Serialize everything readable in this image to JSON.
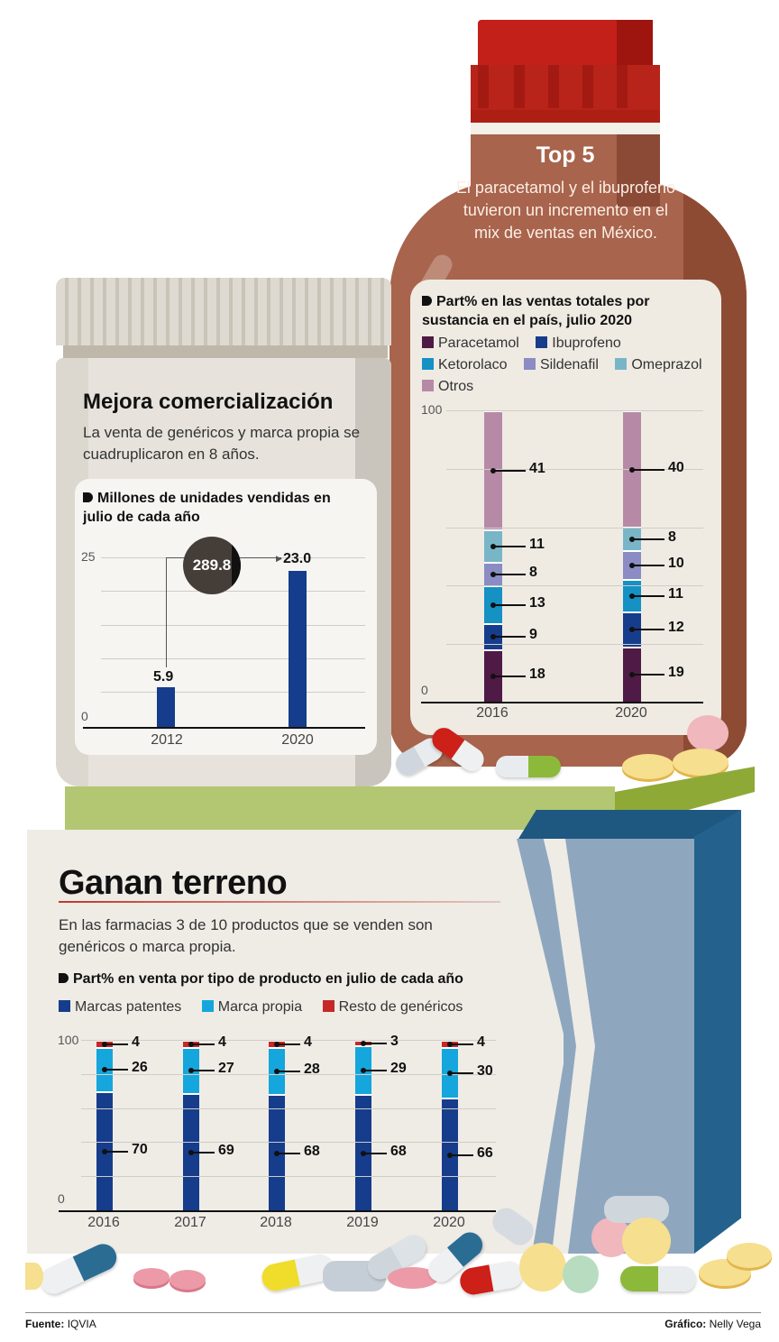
{
  "top5": {
    "title": "Top 5",
    "subtitle": "El paracetamol y el ibuprofeno tuvieron un incremento en el mix de ventas en México.",
    "legend_title": "Part% en las ventas totales por sustancia en el país, julio 2020",
    "legend": [
      {
        "label": "Paracetamol",
        "color": "#4f1a45"
      },
      {
        "label": "Ibuprofeno",
        "color": "#163c8c"
      },
      {
        "label": "Ketorolaco",
        "color": "#1591c4"
      },
      {
        "label": "Sildenafil",
        "color": "#8a8cc3"
      },
      {
        "label": "Omeprazol",
        "color": "#78b6c7"
      },
      {
        "label": "Otros",
        "color": "#b68aa6"
      }
    ],
    "axis": {
      "max": "100",
      "min": "0"
    },
    "categories": [
      "2016",
      "2020"
    ]
  },
  "mejora": {
    "title": "Mejora comercialización",
    "subtitle": "La venta de genéricos y marca propia se cuadruplicaron en 8 años.",
    "legend_title": "Millones de unidades vendidas en julio de cada año",
    "axis": {
      "max": "25",
      "min": "0"
    },
    "categories": [
      "2012",
      "2020"
    ],
    "values": [
      "5.9",
      "23.0"
    ],
    "growth_label": "289.8"
  },
  "ganan": {
    "title": "Ganan terreno",
    "subtitle": "En las farmacias 3 de 10 productos que se venden son genéricos o marca propia.",
    "legend_title": "Part% en venta por tipo de producto en julio de cada año",
    "legend": [
      {
        "label": "Marcas patentes",
        "color": "#163c8c"
      },
      {
        "label": "Marca propia",
        "color": "#14a6dc"
      },
      {
        "label": "Resto de genéricos",
        "color": "#c62828"
      }
    ],
    "axis": {
      "max": "100",
      "min": "0"
    },
    "categories": [
      "2016",
      "2017",
      "2018",
      "2019",
      "2020"
    ]
  },
  "footer": {
    "source_label": "Fuente:",
    "source": "IQVIA",
    "credit_label": "Gráfico:",
    "credit": "Nelly Vega"
  },
  "chart_data": [
    {
      "type": "bar",
      "title": "Millones de unidades vendidas en julio de cada año",
      "categories": [
        "2012",
        "2020"
      ],
      "values": [
        5.9,
        23.0
      ],
      "annotations": [
        "289.8 (% growth 2012→2020)"
      ],
      "xlabel": "",
      "ylabel": "Millones de unidades",
      "ylim": [
        0,
        25
      ],
      "grid": true
    },
    {
      "type": "bar",
      "stacked": true,
      "title": "Part% en las ventas totales por sustancia en el país, julio 2020",
      "categories": [
        "2016",
        "2020"
      ],
      "series": [
        {
          "name": "Paracetamol",
          "values": [
            18,
            19
          ]
        },
        {
          "name": "Ibuprofeno",
          "values": [
            9,
            12
          ]
        },
        {
          "name": "Ketorolaco",
          "values": [
            13,
            11
          ]
        },
        {
          "name": "Sildenafil",
          "values": [
            8,
            10
          ]
        },
        {
          "name": "Omeprazol",
          "values": [
            11,
            8
          ]
        },
        {
          "name": "Otros",
          "values": [
            41,
            40
          ]
        }
      ],
      "ylim": [
        0,
        100
      ],
      "grid": true,
      "legend_position": "top"
    },
    {
      "type": "bar",
      "stacked": true,
      "title": "Part% en venta por tipo de producto en julio de cada año",
      "categories": [
        "2016",
        "2017",
        "2018",
        "2019",
        "2020"
      ],
      "series": [
        {
          "name": "Marcas patentes",
          "values": [
            70,
            69,
            68,
            68,
            66
          ]
        },
        {
          "name": "Marca propia",
          "values": [
            26,
            27,
            28,
            29,
            30
          ]
        },
        {
          "name": "Resto de genéricos",
          "values": [
            4,
            4,
            4,
            3,
            4
          ]
        }
      ],
      "ylim": [
        0,
        100
      ],
      "grid": true,
      "legend_position": "top"
    }
  ]
}
